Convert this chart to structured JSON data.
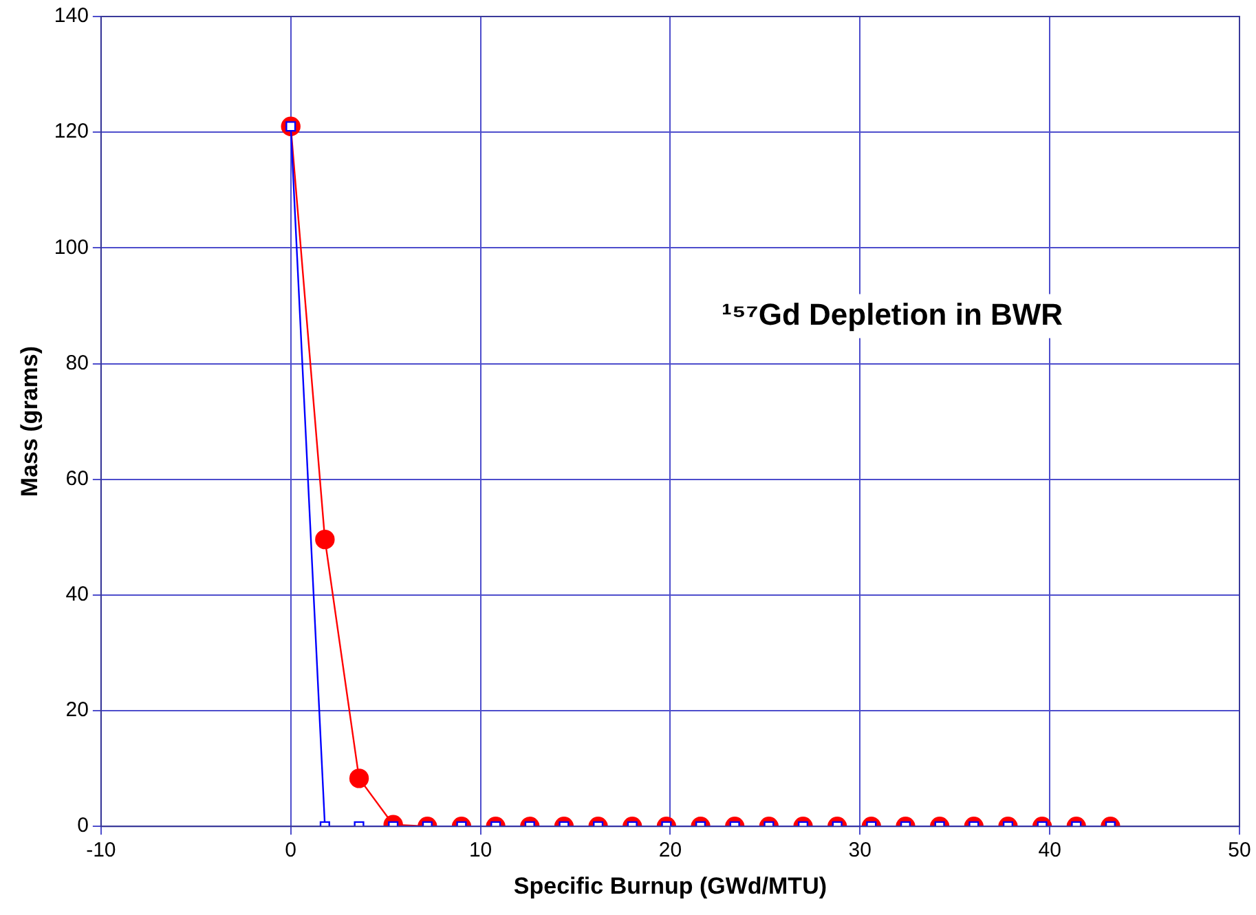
{
  "chart_data": {
    "type": "line",
    "title": "¹⁵⁷Gd Depletion in BWR",
    "xlabel": "Specific Burnup (GWd/MTU)",
    "ylabel": "Mass (grams)",
    "xlim": [
      -10,
      50
    ],
    "xticks": [
      -10,
      0,
      10,
      20,
      30,
      40,
      50
    ],
    "ylim": [
      0,
      140
    ],
    "yticks": [
      0,
      20,
      40,
      60,
      80,
      100,
      120,
      140
    ],
    "grid": true,
    "x": [
      0,
      1.8,
      3.6,
      5.4,
      7.2,
      9,
      10.8,
      12.6,
      14.4,
      16.2,
      18,
      19.8,
      21.6,
      23.4,
      25.2,
      27,
      28.8,
      30.6,
      32.4,
      34.2,
      36,
      37.8,
      39.6,
      41.4,
      43.2
    ],
    "series": [
      {
        "color": "#ff0000",
        "marker": "circle",
        "values": [
          121,
          49.6,
          8.3,
          0.3,
          0,
          0,
          0,
          0,
          0,
          0,
          0,
          0,
          0,
          0,
          0,
          0,
          0,
          0,
          0,
          0,
          0,
          0,
          0,
          0,
          0
        ]
      },
      {
        "color": "#0000ff",
        "marker": "square",
        "values": [
          121,
          0,
          0,
          0,
          0,
          0,
          0,
          0,
          0,
          0,
          0,
          0,
          0,
          0,
          0,
          0,
          0,
          0,
          0,
          0,
          0,
          0,
          0,
          0,
          0
        ]
      }
    ]
  }
}
